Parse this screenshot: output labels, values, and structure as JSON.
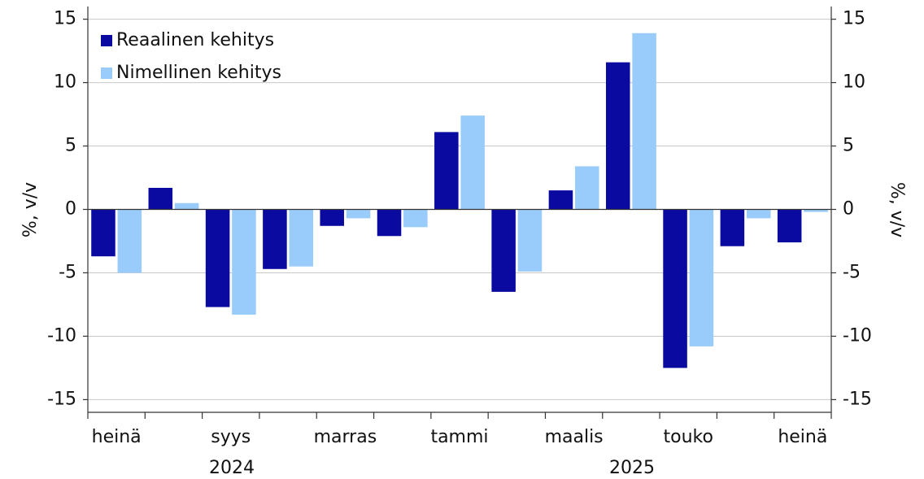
{
  "chart_data": {
    "type": "bar",
    "categories": [
      "heinä",
      null,
      "syys",
      null,
      "marras",
      null,
      "tammi",
      null,
      "maalis",
      null,
      "touko",
      null,
      "heinä"
    ],
    "annotations": [
      "2024",
      "2025"
    ],
    "ylabel": "%, v/v",
    "y2label": "%, v/v",
    "series": [
      {
        "name": "Reaalinen kehitys",
        "color": "#0a0aa0",
        "values": [
          -3.7,
          1.7,
          -7.7,
          -4.7,
          -1.3,
          -2.1,
          6.1,
          -6.5,
          1.5,
          11.6,
          -12.5,
          -2.9,
          -2.6
        ]
      },
      {
        "name": "Nimellinen kehitys",
        "color": "#99ccfa",
        "values": [
          -5.0,
          0.5,
          -8.3,
          -4.5,
          -0.7,
          -1.4,
          7.4,
          -4.9,
          3.4,
          13.9,
          -10.8,
          -0.7,
          -0.2
        ]
      }
    ],
    "ylim": [
      -16,
      16
    ],
    "yticks": [
      -15,
      -10,
      -5,
      0,
      5,
      10,
      15
    ],
    "y2lim": [
      -16,
      16
    ],
    "y2ticks": [
      -15,
      -10,
      -5,
      0,
      5,
      10,
      15
    ],
    "grid": true,
    "legend": "upper left"
  }
}
